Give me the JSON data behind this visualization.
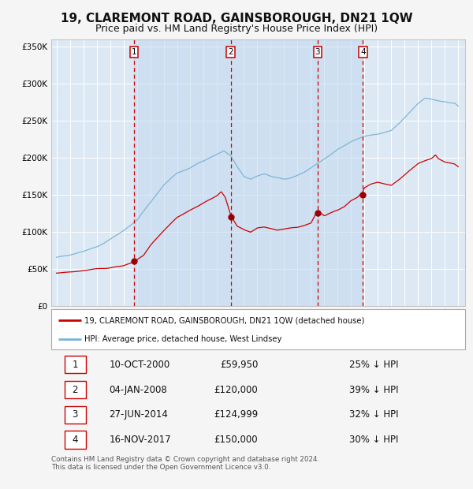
{
  "title": "19, CLAREMONT ROAD, GAINSBOROUGH, DN21 1QW",
  "subtitle": "Price paid vs. HM Land Registry's House Price Index (HPI)",
  "title_fontsize": 11,
  "subtitle_fontsize": 9,
  "ylim": [
    0,
    360000
  ],
  "yticks": [
    0,
    50000,
    100000,
    150000,
    200000,
    250000,
    300000,
    350000
  ],
  "ytick_labels": [
    "£0",
    "£50K",
    "£100K",
    "£150K",
    "£200K",
    "£250K",
    "£300K",
    "£350K"
  ],
  "xlim_start": 1994.6,
  "xlim_end": 2025.5,
  "background_color": "#f5f5f5",
  "plot_bg_color": "#dce9f5",
  "grid_color": "#ffffff",
  "hpi_line_color": "#7ab3d4",
  "price_line_color": "#cc0000",
  "sale_marker_color": "#990000",
  "vline_color": "#cc0000",
  "purchases": [
    {
      "num": 1,
      "date_label": "10-OCT-2000",
      "date_float": 2000.78,
      "price": 59950,
      "pct": "25%",
      "label": "1"
    },
    {
      "num": 2,
      "date_label": "04-JAN-2008",
      "date_float": 2008.01,
      "price": 120000,
      "pct": "39%",
      "label": "2"
    },
    {
      "num": 3,
      "date_label": "27-JUN-2014",
      "date_float": 2014.49,
      "price": 124999,
      "pct": "32%",
      "label": "3"
    },
    {
      "num": 4,
      "date_label": "16-NOV-2017",
      "date_float": 2017.88,
      "price": 150000,
      "pct": "30%",
      "label": "4"
    }
  ],
  "legend_label_price": "19, CLAREMONT ROAD, GAINSBOROUGH, DN21 1QW (detached house)",
  "legend_label_hpi": "HPI: Average price, detached house, West Lindsey",
  "footnote": "Contains HM Land Registry data © Crown copyright and database right 2024.\nThis data is licensed under the Open Government Licence v3.0.",
  "table_rows": [
    [
      "1",
      "10-OCT-2000",
      "£59,950",
      "25% ↓ HPI"
    ],
    [
      "2",
      "04-JAN-2008",
      "£120,000",
      "39% ↓ HPI"
    ],
    [
      "3",
      "27-JUN-2014",
      "£124,999",
      "32% ↓ HPI"
    ],
    [
      "4",
      "16-NOV-2017",
      "£150,000",
      "30% ↓ HPI"
    ]
  ],
  "hpi_keypoints": [
    [
      1995.0,
      65000
    ],
    [
      1996.0,
      68000
    ],
    [
      1997.0,
      73000
    ],
    [
      1998.0,
      79000
    ],
    [
      1999.0,
      88000
    ],
    [
      2000.0,
      98000
    ],
    [
      2001.0,
      113000
    ],
    [
      2002.0,
      138000
    ],
    [
      2003.0,
      162000
    ],
    [
      2004.0,
      178000
    ],
    [
      2005.0,
      185000
    ],
    [
      2006.0,
      193000
    ],
    [
      2007.0,
      203000
    ],
    [
      2007.5,
      207000
    ],
    [
      2008.0,
      200000
    ],
    [
      2008.5,
      185000
    ],
    [
      2009.0,
      172000
    ],
    [
      2009.5,
      168000
    ],
    [
      2010.0,
      172000
    ],
    [
      2010.5,
      175000
    ],
    [
      2011.0,
      172000
    ],
    [
      2011.5,
      170000
    ],
    [
      2012.0,
      168000
    ],
    [
      2012.5,
      170000
    ],
    [
      2013.0,
      173000
    ],
    [
      2013.5,
      177000
    ],
    [
      2014.0,
      182000
    ],
    [
      2014.5,
      188000
    ],
    [
      2015.0,
      194000
    ],
    [
      2015.5,
      200000
    ],
    [
      2016.0,
      207000
    ],
    [
      2016.5,
      212000
    ],
    [
      2017.0,
      218000
    ],
    [
      2017.5,
      222000
    ],
    [
      2018.0,
      224000
    ],
    [
      2018.5,
      225000
    ],
    [
      2019.0,
      226000
    ],
    [
      2019.5,
      228000
    ],
    [
      2020.0,
      230000
    ],
    [
      2020.5,
      238000
    ],
    [
      2021.0,
      248000
    ],
    [
      2021.5,
      258000
    ],
    [
      2022.0,
      268000
    ],
    [
      2022.5,
      274000
    ],
    [
      2023.0,
      272000
    ],
    [
      2023.5,
      270000
    ],
    [
      2024.0,
      268000
    ],
    [
      2024.5,
      265000
    ],
    [
      2025.0,
      265000
    ]
  ],
  "price_keypoints": [
    [
      1995.0,
      44000
    ],
    [
      1996.0,
      45000
    ],
    [
      1997.0,
      47000
    ],
    [
      1998.0,
      50000
    ],
    [
      1999.0,
      52000
    ],
    [
      2000.0,
      55000
    ],
    [
      2000.78,
      59950
    ],
    [
      2001.5,
      68000
    ],
    [
      2002.0,
      80000
    ],
    [
      2003.0,
      100000
    ],
    [
      2004.0,
      118000
    ],
    [
      2005.0,
      128000
    ],
    [
      2006.0,
      138000
    ],
    [
      2007.0,
      148000
    ],
    [
      2007.3,
      153000
    ],
    [
      2007.6,
      145000
    ],
    [
      2008.01,
      120000
    ],
    [
      2008.5,
      105000
    ],
    [
      2009.0,
      100000
    ],
    [
      2009.5,
      97000
    ],
    [
      2010.0,
      103000
    ],
    [
      2010.5,
      104000
    ],
    [
      2011.0,
      102000
    ],
    [
      2011.5,
      100000
    ],
    [
      2012.0,
      101000
    ],
    [
      2012.5,
      102000
    ],
    [
      2013.0,
      103000
    ],
    [
      2013.5,
      105000
    ],
    [
      2014.0,
      108000
    ],
    [
      2014.49,
      124999
    ],
    [
      2015.0,
      118000
    ],
    [
      2015.5,
      122000
    ],
    [
      2016.0,
      125000
    ],
    [
      2016.5,
      130000
    ],
    [
      2017.0,
      138000
    ],
    [
      2017.5,
      143000
    ],
    [
      2017.88,
      150000
    ],
    [
      2018.0,
      155000
    ],
    [
      2018.5,
      160000
    ],
    [
      2019.0,
      163000
    ],
    [
      2019.5,
      160000
    ],
    [
      2020.0,
      158000
    ],
    [
      2020.5,
      165000
    ],
    [
      2021.0,
      172000
    ],
    [
      2021.5,
      180000
    ],
    [
      2022.0,
      188000
    ],
    [
      2022.5,
      192000
    ],
    [
      2023.0,
      195000
    ],
    [
      2023.3,
      200000
    ],
    [
      2023.5,
      195000
    ],
    [
      2024.0,
      190000
    ],
    [
      2024.5,
      188000
    ],
    [
      2025.0,
      185000
    ]
  ]
}
